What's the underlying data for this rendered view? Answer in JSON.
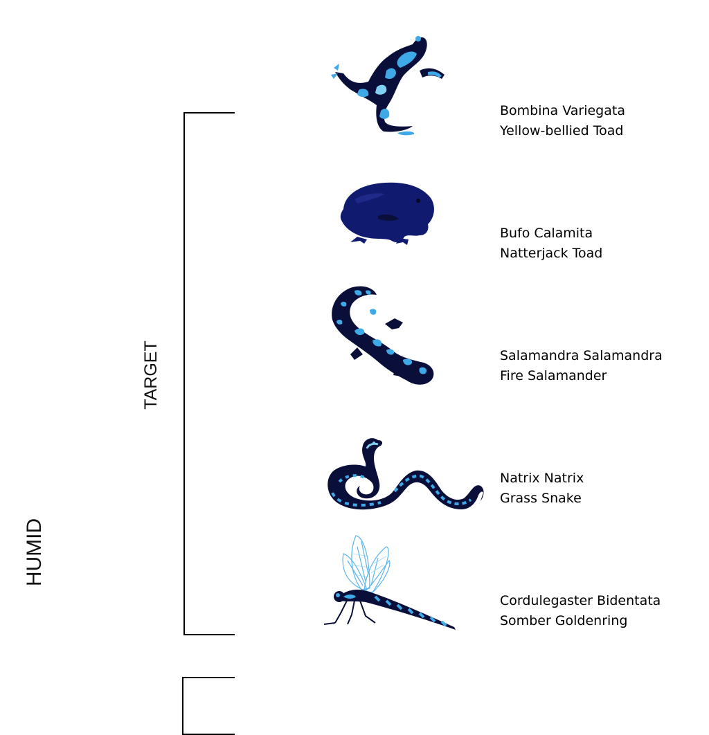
{
  "group_label": "HUMID",
  "subgroup_label": "TARGET",
  "colors": {
    "dark": "#0a0f3a",
    "navy": "#101a6e",
    "accent": "#3fa8e6",
    "light": "#7fd0f2"
  },
  "species": [
    {
      "scientific": "Bombina Variegata",
      "common": "Yellow-bellied Toad",
      "icon": "yellow-bellied-toad-icon"
    },
    {
      "scientific": "Bufo Calamita",
      "common": "Natterjack Toad",
      "icon": "natterjack-toad-icon"
    },
    {
      "scientific": "Salamandra Salamandra",
      "common": "Fire Salamander",
      "icon": "fire-salamander-icon"
    },
    {
      "scientific": "Natrix Natrix",
      "common": "Grass Snake",
      "icon": "grass-snake-icon"
    },
    {
      "scientific": "Cordulegaster Bidentata",
      "common": "Somber Goldenring",
      "icon": "somber-goldenring-icon"
    }
  ]
}
